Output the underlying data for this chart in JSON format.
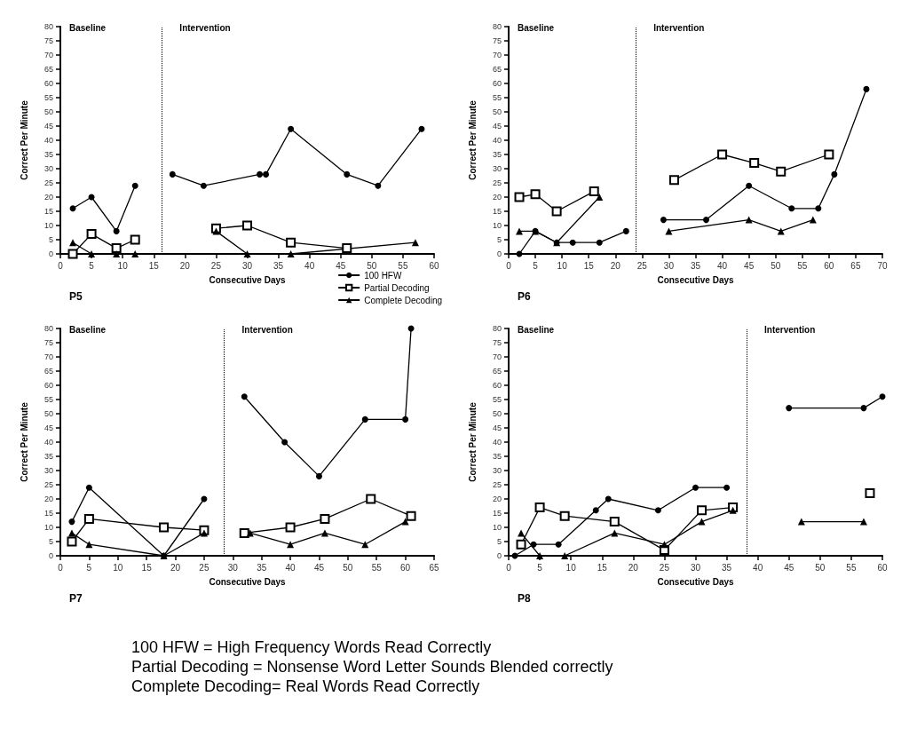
{
  "chart_data": [
    {
      "type": "line",
      "subtitle": "P5",
      "xlabel": "Consecutive Days",
      "ylabel": "Correct Per Minute",
      "xlim": [
        0,
        60
      ],
      "xticks": [
        0,
        5,
        10,
        15,
        20,
        25,
        30,
        35,
        40,
        45,
        50,
        55,
        60
      ],
      "ylim": [
        0,
        80
      ],
      "yticks": [
        0,
        5,
        10,
        15,
        20,
        25,
        30,
        35,
        40,
        45,
        50,
        55,
        60,
        65,
        70,
        75,
        80
      ],
      "grid": false,
      "legend": "bottom right",
      "annotations": [
        "Baseline",
        "Intervention"
      ],
      "ref_lines": [
        {
          "axis": "x",
          "value": 16.3,
          "line_style": "dotted",
          "color": "#000000"
        }
      ],
      "series": [
        {
          "name": "100 HFW",
          "color": "#000000",
          "marker": "circle",
          "x": [
            2,
            5,
            9,
            12,
            null,
            18,
            23,
            32,
            33,
            37,
            46,
            51,
            58
          ],
          "values": [
            16,
            20,
            8,
            24,
            null,
            28,
            24,
            28,
            28,
            44,
            28,
            24,
            44
          ]
        },
        {
          "name": "Partial Decoding",
          "color": "#000000",
          "marker": "square",
          "x": [
            2,
            5,
            9,
            12,
            null,
            25,
            30,
            37,
            46
          ],
          "values": [
            0,
            7,
            2,
            5,
            null,
            9,
            10,
            4,
            2
          ]
        },
        {
          "name": "Complete Decoding",
          "color": "#000000",
          "marker": "triangle",
          "x": [
            2,
            5,
            9,
            12,
            null,
            25,
            30,
            37,
            57
          ],
          "values": [
            4,
            0,
            0,
            0,
            null,
            8,
            0,
            0,
            4
          ]
        }
      ]
    },
    {
      "type": "line",
      "subtitle": "P6",
      "xlabel": "Consecutive Days",
      "ylabel": "Correct Per Minute",
      "xlim": [
        0,
        70
      ],
      "xticks": [
        0,
        5,
        10,
        15,
        20,
        25,
        30,
        35,
        40,
        45,
        50,
        55,
        60,
        65,
        70
      ],
      "ylim": [
        0,
        80
      ],
      "yticks": [
        0,
        5,
        10,
        15,
        20,
        25,
        30,
        35,
        40,
        45,
        50,
        55,
        60,
        65,
        70,
        75,
        80
      ],
      "grid": false,
      "annotations": [
        "Baseline",
        "Intervention"
      ],
      "ref_lines": [
        {
          "axis": "x",
          "value": 23.8,
          "line_style": "dotted",
          "color": "#000000"
        }
      ],
      "series": [
        {
          "color": "#000000",
          "marker": "circle",
          "x": [
            2,
            5,
            9,
            12,
            17,
            22,
            null,
            29,
            37,
            45,
            53,
            58,
            61,
            67
          ],
          "values": [
            0,
            8,
            4,
            4,
            4,
            8,
            null,
            12,
            12,
            24,
            16,
            16,
            28,
            58
          ]
        },
        {
          "color": "#000000",
          "marker": "square",
          "x": [
            2,
            5,
            9,
            16,
            null,
            31,
            40,
            46,
            51,
            60
          ],
          "values": [
            20,
            21,
            15,
            22,
            null,
            26,
            35,
            32,
            29,
            35
          ]
        },
        {
          "color": "#000000",
          "marker": "triangle",
          "x": [
            2,
            5,
            9,
            17,
            null,
            30,
            45,
            51,
            57
          ],
          "values": [
            8,
            8,
            4,
            20,
            null,
            8,
            12,
            8,
            12
          ]
        }
      ]
    },
    {
      "type": "line",
      "subtitle": "P7",
      "xlabel": "Consecutive Days",
      "ylabel": "Correct Per Minute",
      "xlim": [
        0,
        65
      ],
      "xticks": [
        0,
        5,
        10,
        15,
        20,
        25,
        30,
        35,
        40,
        45,
        50,
        55,
        60,
        65
      ],
      "ylim": [
        0,
        80
      ],
      "yticks": [
        0,
        5,
        10,
        15,
        20,
        25,
        30,
        35,
        40,
        45,
        50,
        55,
        60,
        65,
        70,
        75,
        80
      ],
      "grid": false,
      "annotations": [
        "Baseline",
        "Intervention"
      ],
      "ref_lines": [
        {
          "axis": "x",
          "value": 28.5,
          "line_style": "dotted",
          "color": "#000000"
        }
      ],
      "series": [
        {
          "color": "#000000",
          "marker": "circle",
          "x": [
            2,
            5,
            18,
            25,
            null,
            32,
            39,
            45,
            53,
            60,
            61
          ],
          "values": [
            12,
            24,
            0,
            20,
            null,
            56,
            40,
            28,
            48,
            48,
            80
          ]
        },
        {
          "color": "#000000",
          "marker": "square",
          "x": [
            2,
            5,
            18,
            25,
            null,
            32,
            40,
            46,
            54,
            61
          ],
          "values": [
            5,
            13,
            10,
            9,
            null,
            8,
            10,
            13,
            20,
            14
          ]
        },
        {
          "color": "#000000",
          "marker": "triangle",
          "x": [
            2,
            5,
            18,
            25,
            null,
            33,
            40,
            46,
            53,
            60
          ],
          "values": [
            8,
            4,
            0,
            8,
            null,
            8,
            4,
            8,
            4,
            12
          ]
        }
      ]
    },
    {
      "type": "line",
      "subtitle": "P8",
      "xlabel": "Consecutive Days",
      "ylabel": "Correct Per Minute",
      "xlim": [
        0,
        60
      ],
      "xticks": [
        0,
        5,
        10,
        15,
        20,
        25,
        30,
        35,
        40,
        45,
        50,
        55,
        60
      ],
      "ylim": [
        0,
        80
      ],
      "yticks": [
        0,
        5,
        10,
        15,
        20,
        25,
        30,
        35,
        40,
        45,
        50,
        55,
        60,
        65,
        70,
        75,
        80
      ],
      "grid": false,
      "annotations": [
        "Baseline",
        "Intervention"
      ],
      "ref_lines": [
        {
          "axis": "x",
          "value": 38.2,
          "line_style": "dotted",
          "color": "#000000"
        }
      ],
      "series": [
        {
          "color": "#000000",
          "marker": "circle",
          "x": [
            1,
            4,
            8,
            14,
            16,
            24,
            30,
            35,
            null,
            45,
            57,
            60
          ],
          "values": [
            0,
            4,
            4,
            16,
            20,
            16,
            24,
            24,
            null,
            52,
            52,
            56
          ]
        },
        {
          "color": "#000000",
          "marker": "square",
          "x": [
            2,
            5,
            9,
            17,
            25,
            31,
            36,
            null,
            58
          ],
          "values": [
            4,
            17,
            14,
            12,
            2,
            16,
            17,
            null,
            22
          ]
        },
        {
          "color": "#000000",
          "marker": "triangle",
          "x": [
            2,
            5,
            9,
            17,
            25,
            31,
            36,
            null,
            47,
            57
          ],
          "values": [
            8,
            0,
            0,
            8,
            4,
            12,
            16,
            null,
            12,
            12
          ]
        }
      ]
    },
    {
      "type": "other",
      "annotations": [
        "100 HFW = High Frequency Words Read Correctly",
        "Partial Decoding = Nonsense Word Letter Sounds Blended correctly",
        "Complete Decoding= Real Words Read Correctly"
      ]
    }
  ]
}
